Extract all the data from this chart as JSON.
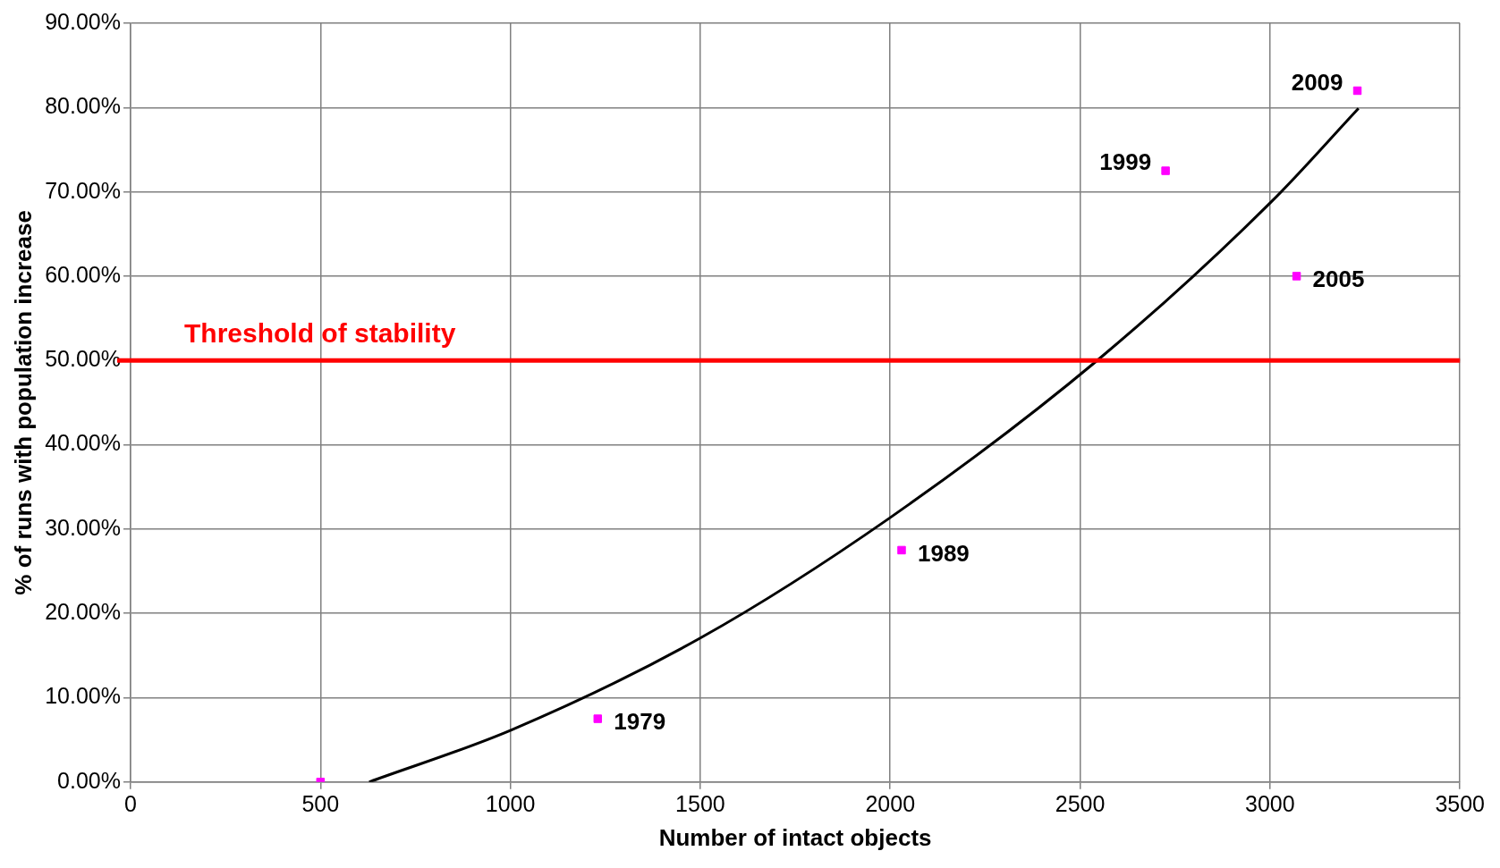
{
  "chart_data": {
    "type": "scatter",
    "xlabel": "Number of intact objects",
    "ylabel": "% of runs with population increase",
    "xlim": [
      0,
      3500
    ],
    "xticks": [
      0,
      500,
      1000,
      1500,
      2000,
      2500,
      3000,
      3500
    ],
    "ylim": [
      0,
      90
    ],
    "yticks": [
      {
        "value": 0,
        "label": "0.00%"
      },
      {
        "value": 10,
        "label": "10.00%"
      },
      {
        "value": 20,
        "label": "20.00%"
      },
      {
        "value": 30,
        "label": "30.00%"
      },
      {
        "value": 40,
        "label": "40.00%"
      },
      {
        "value": 50,
        "label": "50.00%"
      },
      {
        "value": 60,
        "label": "60.00%"
      },
      {
        "value": 70,
        "label": "70.00%"
      },
      {
        "value": 80,
        "label": "80.00%"
      },
      {
        "value": 90,
        "label": "90.00%"
      }
    ],
    "grid": true,
    "legend": false,
    "series": [
      {
        "type": "scatter",
        "color": "#ff00ff",
        "marker": "square",
        "x": [
          500,
          1230,
          2030,
          2725,
          3070,
          3230
        ],
        "values": [
          0,
          7.5,
          27.5,
          72.5,
          60,
          82
        ]
      },
      {
        "type": "line",
        "color": "#000000",
        "marker": "none",
        "x": [
          628,
          1004,
          1501,
          1998,
          2545,
          3003,
          3233
        ],
        "values": [
          0,
          6.2,
          17.1,
          31.3,
          50,
          68.8,
          79.9
        ]
      }
    ],
    "ref_lines": [
      {
        "axis": "y",
        "value": 50,
        "label": "Threshold of stability",
        "color": "#ff0000"
      }
    ],
    "annotations": [
      {
        "text": "1979",
        "x": 1230,
        "y": 7.5
      },
      {
        "text": "1989",
        "x": 2030,
        "y": 27.5
      },
      {
        "text": "1999",
        "x": 2725,
        "y": 72.5
      },
      {
        "text": "2005",
        "x": 3070,
        "y": 60
      },
      {
        "text": "2009",
        "x": 3230,
        "y": 82
      }
    ]
  }
}
